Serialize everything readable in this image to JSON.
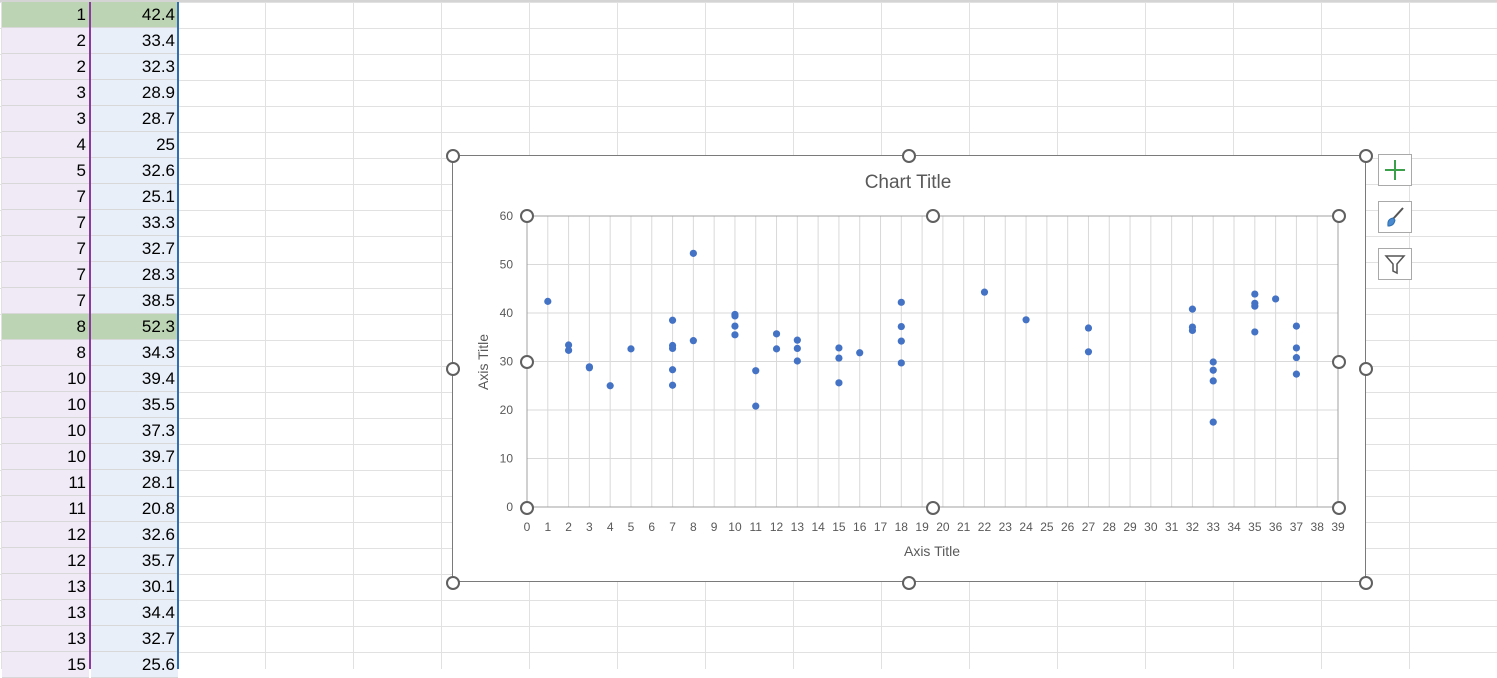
{
  "sheet": {
    "col_a": [
      "1",
      "2",
      "2",
      "3",
      "3",
      "4",
      "5",
      "7",
      "7",
      "7",
      "7",
      "7",
      "8",
      "8",
      "10",
      "10",
      "10",
      "10",
      "11",
      "11",
      "12",
      "12",
      "13",
      "13",
      "13",
      "15"
    ],
    "col_b": [
      "42.4",
      "33.4",
      "32.3",
      "28.9",
      "28.7",
      "25",
      "32.6",
      "25.1",
      "33.3",
      "32.7",
      "28.3",
      "38.5",
      "52.3",
      "34.3",
      "39.4",
      "35.5",
      "37.3",
      "39.7",
      "28.1",
      "20.8",
      "32.6",
      "35.7",
      "30.1",
      "34.4",
      "32.7",
      "25.6"
    ]
  },
  "chart_data": {
    "type": "scatter",
    "title": "Chart Title",
    "xlabel": "Axis Title",
    "ylabel": "Axis Title",
    "xlim": [
      0,
      39
    ],
    "ylim": [
      0,
      60
    ],
    "x_ticks": [
      "0",
      "1",
      "2",
      "3",
      "4",
      "5",
      "6",
      "7",
      "8",
      "9",
      "10",
      "11",
      "12",
      "13",
      "14",
      "15",
      "16",
      "17",
      "18",
      "19",
      "20",
      "21",
      "22",
      "23",
      "24",
      "25",
      "26",
      "27",
      "28",
      "29",
      "30",
      "31",
      "32",
      "33",
      "34",
      "35",
      "36",
      "37",
      "38",
      "39"
    ],
    "y_ticks": [
      "0",
      "10",
      "20",
      "30",
      "40",
      "50",
      "60"
    ],
    "grid": true,
    "marker_color": "#4472c4",
    "points": [
      [
        1,
        42.4
      ],
      [
        2,
        33.4
      ],
      [
        2,
        32.3
      ],
      [
        3,
        28.9
      ],
      [
        3,
        28.7
      ],
      [
        4,
        25
      ],
      [
        5,
        32.6
      ],
      [
        7,
        25.1
      ],
      [
        7,
        33.3
      ],
      [
        7,
        32.7
      ],
      [
        7,
        28.3
      ],
      [
        7,
        38.5
      ],
      [
        8,
        52.3
      ],
      [
        8,
        34.3
      ],
      [
        10,
        39.4
      ],
      [
        10,
        35.5
      ],
      [
        10,
        37.3
      ],
      [
        10,
        39.7
      ],
      [
        11,
        28.1
      ],
      [
        11,
        20.8
      ],
      [
        12,
        32.6
      ],
      [
        12,
        35.7
      ],
      [
        13,
        30.1
      ],
      [
        13,
        34.4
      ],
      [
        13,
        32.7
      ],
      [
        15,
        25.6
      ],
      [
        15,
        32.8
      ],
      [
        15,
        30.7
      ],
      [
        16,
        31.8
      ],
      [
        18,
        42.2
      ],
      [
        18,
        37.2
      ],
      [
        18,
        34.2
      ],
      [
        18,
        29.7
      ],
      [
        22,
        44.3
      ],
      [
        24,
        38.6
      ],
      [
        27,
        36.9
      ],
      [
        27,
        32
      ],
      [
        32,
        40.8
      ],
      [
        32,
        37.1
      ],
      [
        32,
        36.4
      ],
      [
        33,
        29.9
      ],
      [
        33,
        28.2
      ],
      [
        33,
        26
      ],
      [
        33,
        17.5
      ],
      [
        35,
        43.9
      ],
      [
        35,
        42
      ],
      [
        35,
        41.4
      ],
      [
        35,
        36.1
      ],
      [
        36,
        42.9
      ],
      [
        37,
        37.3
      ],
      [
        37,
        32.8
      ],
      [
        37,
        30.8
      ],
      [
        37,
        27.4
      ]
    ]
  },
  "side_buttons": {
    "add_icon": "plus-icon",
    "style_icon": "brush-icon",
    "filter_icon": "filter-icon"
  }
}
